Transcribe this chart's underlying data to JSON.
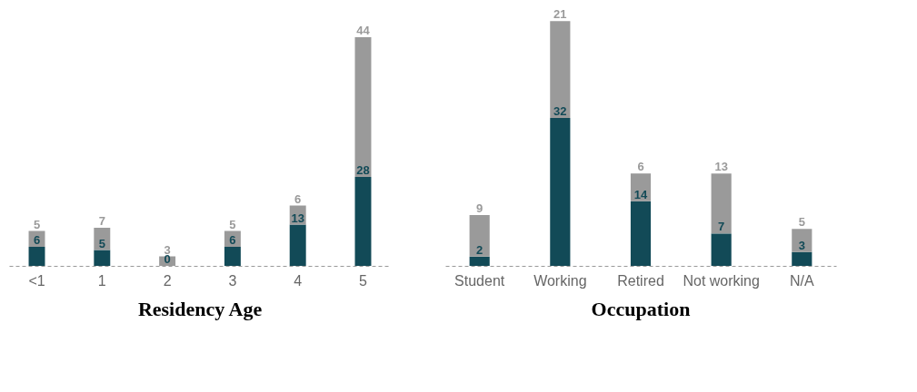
{
  "chart_data": [
    {
      "type": "bar",
      "title": "Residency Age",
      "stacked": true,
      "data_labels": true,
      "categories": [
        "<1",
        "1",
        "2",
        "3",
        "4",
        "5"
      ],
      "series": [
        {
          "color": "#124a57",
          "values": [
            6,
            5,
            0,
            6,
            13,
            28
          ]
        },
        {
          "color": "#9a9a9a",
          "values": [
            5,
            7,
            3,
            5,
            6,
            44
          ]
        }
      ]
    },
    {
      "type": "bar",
      "title": "Occupation",
      "stacked": true,
      "data_labels": true,
      "categories": [
        "Student",
        "Working",
        "Retired",
        "Not working",
        "N/A"
      ],
      "series": [
        {
          "color": "#124a57",
          "values": [
            2,
            32,
            14,
            7,
            3
          ]
        },
        {
          "color": "#9a9a9a",
          "values": [
            9,
            21,
            6,
            13,
            5
          ]
        }
      ]
    }
  ]
}
